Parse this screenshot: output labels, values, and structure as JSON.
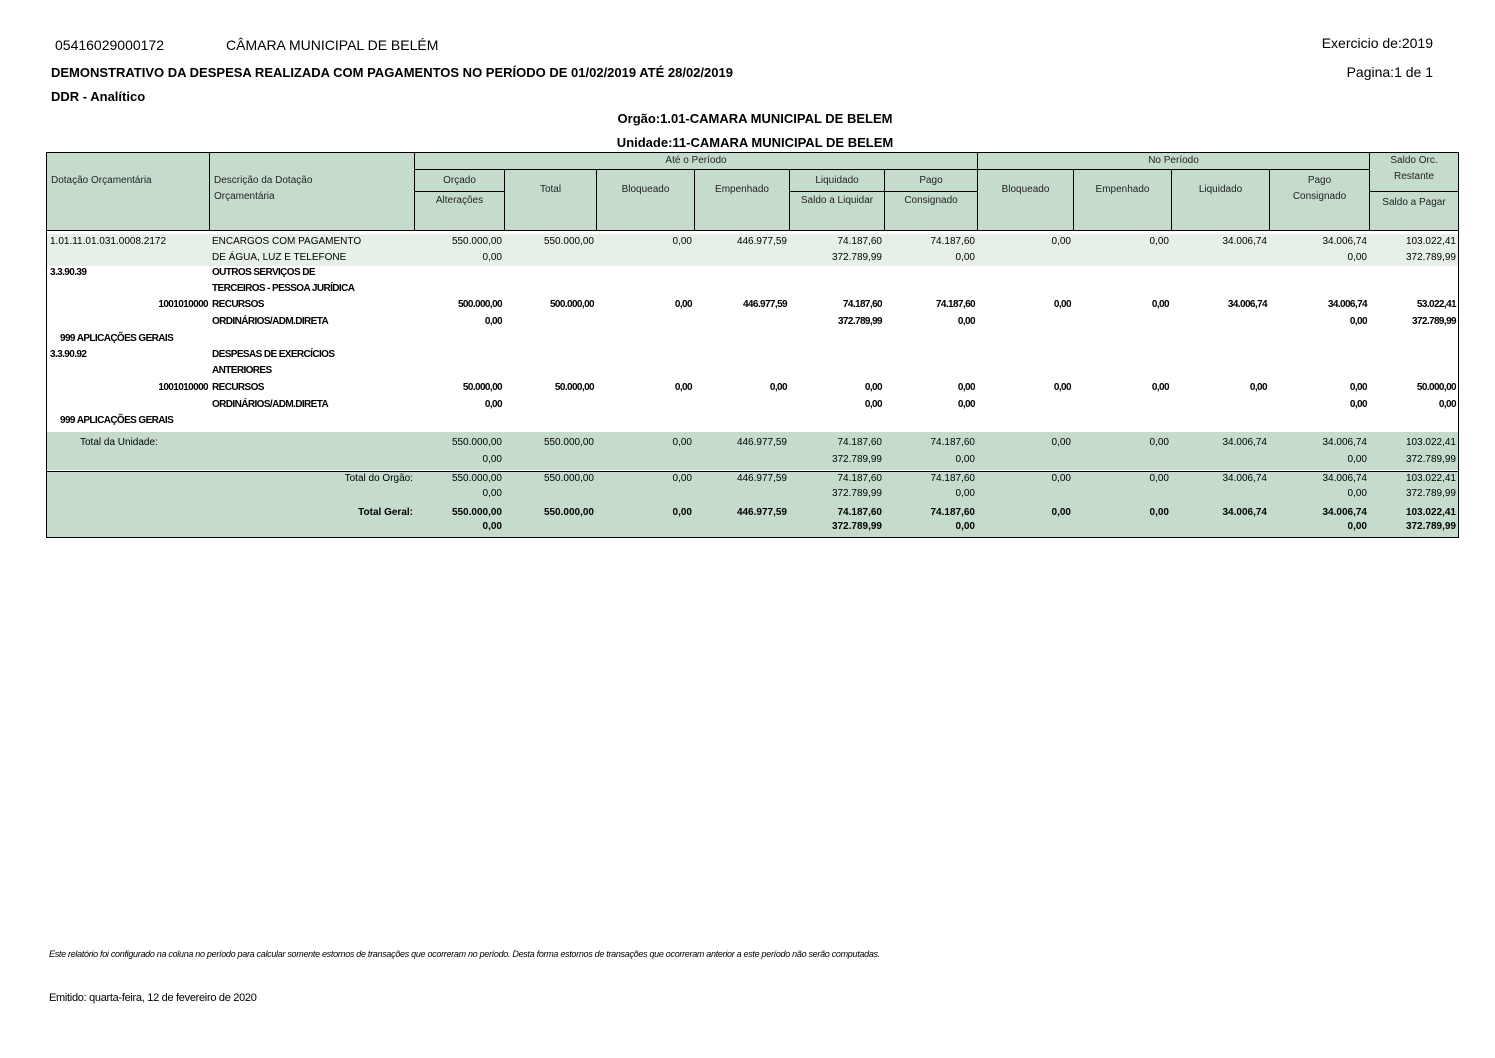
{
  "header": {
    "cnpj": "05416029000172",
    "entity": "CÂMARA MUNICIPAL DE BELÉM",
    "title": "DEMONSTRATIVO DA DESPESA REALIZADA COM PAGAMENTOS NO PERÍODO DE 01/02/2019 ATÉ 28/02/2019",
    "subtitle": "DDR - Analítico",
    "exercicio": "Exercicio de:2019",
    "pagina": "Pagina:1 de 1",
    "orgao": "Orgão:1.01-CAMARA MUNICIPAL DE BELEM",
    "unidade": "Unidade:11-CAMARA MUNICIPAL DE BELEM"
  },
  "table_header": {
    "dotacao": "Dotação Orçamentária",
    "descricao": "Descrição da Dotação",
    "descricao2": "Orçamentária",
    "ate_periodo": "Até o Período",
    "no_periodo": "No Período",
    "saldo_orc": "Saldo Orc.",
    "restante": "Restante",
    "orcado": "Orçado",
    "alteracoes": "Alterações",
    "total": "Total",
    "bloqueado": "Bloqueado",
    "empenhado": "Empenhado",
    "liquidado": "Liquidado",
    "saldo_liquidar": "Saldo a Liquidar",
    "pago": "Pago",
    "consignado": "Consignado",
    "np_bloqueado": "Bloqueado",
    "np_empenhado": "Empenhado",
    "np_liquidado": "Liquidado",
    "np_pago": "Pago",
    "np_consignado": "Consignado",
    "saldo_pagar": "Saldo a Pagar"
  },
  "lines": [
    [
      "1.01.11.01.031.0008.2172",
      "ENCARGOS COM PAGAMENTO",
      "550.000,00",
      "550.000,00",
      "0,00",
      "446.977,59",
      "74.187,60",
      "74.187,60",
      "0,00",
      "0,00",
      "34.006,74",
      "34.006,74",
      "103.022,41"
    ],
    [
      "",
      "DE ÁGUA, LUZ E TELEFONE",
      "0,00",
      "",
      "",
      "",
      "372.789,99",
      "0,00",
      "",
      "",
      "",
      "0,00",
      "372.789,99"
    ],
    [
      "3.3.90.39",
      "OUTROS SERVIÇOS DE",
      "",
      "",
      "",
      "",
      "",
      "",
      "",
      "",
      "",
      "",
      ""
    ],
    [
      "",
      "TERCEIROS - PESSOA JURÍDICA",
      "",
      "",
      "",
      "",
      "",
      "",
      "",
      "",
      "",
      "",
      ""
    ],
    [
      "1001010000",
      "RECURSOS",
      "500.000,00",
      "500.000,00",
      "0,00",
      "446.977,59",
      "74.187,60",
      "74.187,60",
      "0,00",
      "0,00",
      "34.006,74",
      "34.006,74",
      "53.022,41"
    ],
    [
      "",
      "ORDINÁRIOS/ADM.DIRETA",
      "0,00",
      "",
      "",
      "",
      "372.789,99",
      "0,00",
      "",
      "",
      "",
      "0,00",
      "372.789,99"
    ],
    [
      "999 APLICAÇÕES GERAIS",
      "",
      "",
      "",
      "",
      "",
      "",
      "",
      "",
      "",
      "",
      "",
      ""
    ],
    [
      "3.3.90.92",
      "DESPESAS DE EXERCÍCIOS",
      "",
      "",
      "",
      "",
      "",
      "",
      "",
      "",
      "",
      "",
      ""
    ],
    [
      "",
      "ANTERIORES",
      "",
      "",
      "",
      "",
      "",
      "",
      "",
      "",
      "",
      "",
      ""
    ],
    [
      "1001010000",
      "RECURSOS",
      "50.000,00",
      "50.000,00",
      "0,00",
      "0,00",
      "0,00",
      "0,00",
      "0,00",
      "0,00",
      "0,00",
      "0,00",
      "50.000,00"
    ],
    [
      "",
      "ORDINÁRIOS/ADM.DIRETA",
      "0,00",
      "",
      "",
      "",
      "0,00",
      "0,00",
      "",
      "",
      "",
      "0,00",
      "0,00"
    ],
    [
      "999 APLICAÇÕES GERAIS",
      "",
      "",
      "",
      "",
      "",
      "",
      "",
      "",
      "",
      "",
      "",
      ""
    ]
  ],
  "totals": [
    {
      "label": "Total da Unidade:",
      "lines": [
        [
          "550.000,00",
          "550.000,00",
          "0,00",
          "446.977,59",
          "74.187,60",
          "74.187,60",
          "0,00",
          "0,00",
          "34.006,74",
          "34.006,74",
          "103.022,41"
        ],
        [
          "0,00",
          "",
          "",
          "",
          "372.789,99",
          "0,00",
          "",
          "",
          "",
          "0,00",
          "372.789,99"
        ]
      ]
    },
    {
      "label": "Total do Orgão:",
      "lines": [
        [
          "550.000,00",
          "550.000,00",
          "0,00",
          "446.977,59",
          "74.187,60",
          "74.187,60",
          "0,00",
          "0,00",
          "34.006,74",
          "34.006,74",
          "103.022,41"
        ],
        [
          "0,00",
          "",
          "",
          "",
          "372.789,99",
          "0,00",
          "",
          "",
          "",
          "0,00",
          "372.789,99"
        ]
      ]
    },
    {
      "label": "Total Geral:",
      "lines": [
        [
          "550.000,00",
          "550.000,00",
          "0,00",
          "446.977,59",
          "74.187,60",
          "74.187,60",
          "0,00",
          "0,00",
          "34.006,74",
          "34.006,74",
          "103.022,41"
        ],
        [
          "0,00",
          "",
          "",
          "",
          "372.789,99",
          "0,00",
          "",
          "",
          "",
          "0,00",
          "372.789,99"
        ]
      ]
    }
  ],
  "footer": {
    "note": "Este relatório foi configurado na coluna no período para calcular somente estornos de transações que ocorreram no período. Desta forma estornos de transações que ocorreram anterior a este período não serão computadas.",
    "emitido": "Emitido: quarta-feira, 12 de fevereiro de 2020"
  },
  "colors": {
    "header_bg": "#c5dccc",
    "row_highlight": "#e6efe8",
    "total_bg": "#c5dccc"
  }
}
